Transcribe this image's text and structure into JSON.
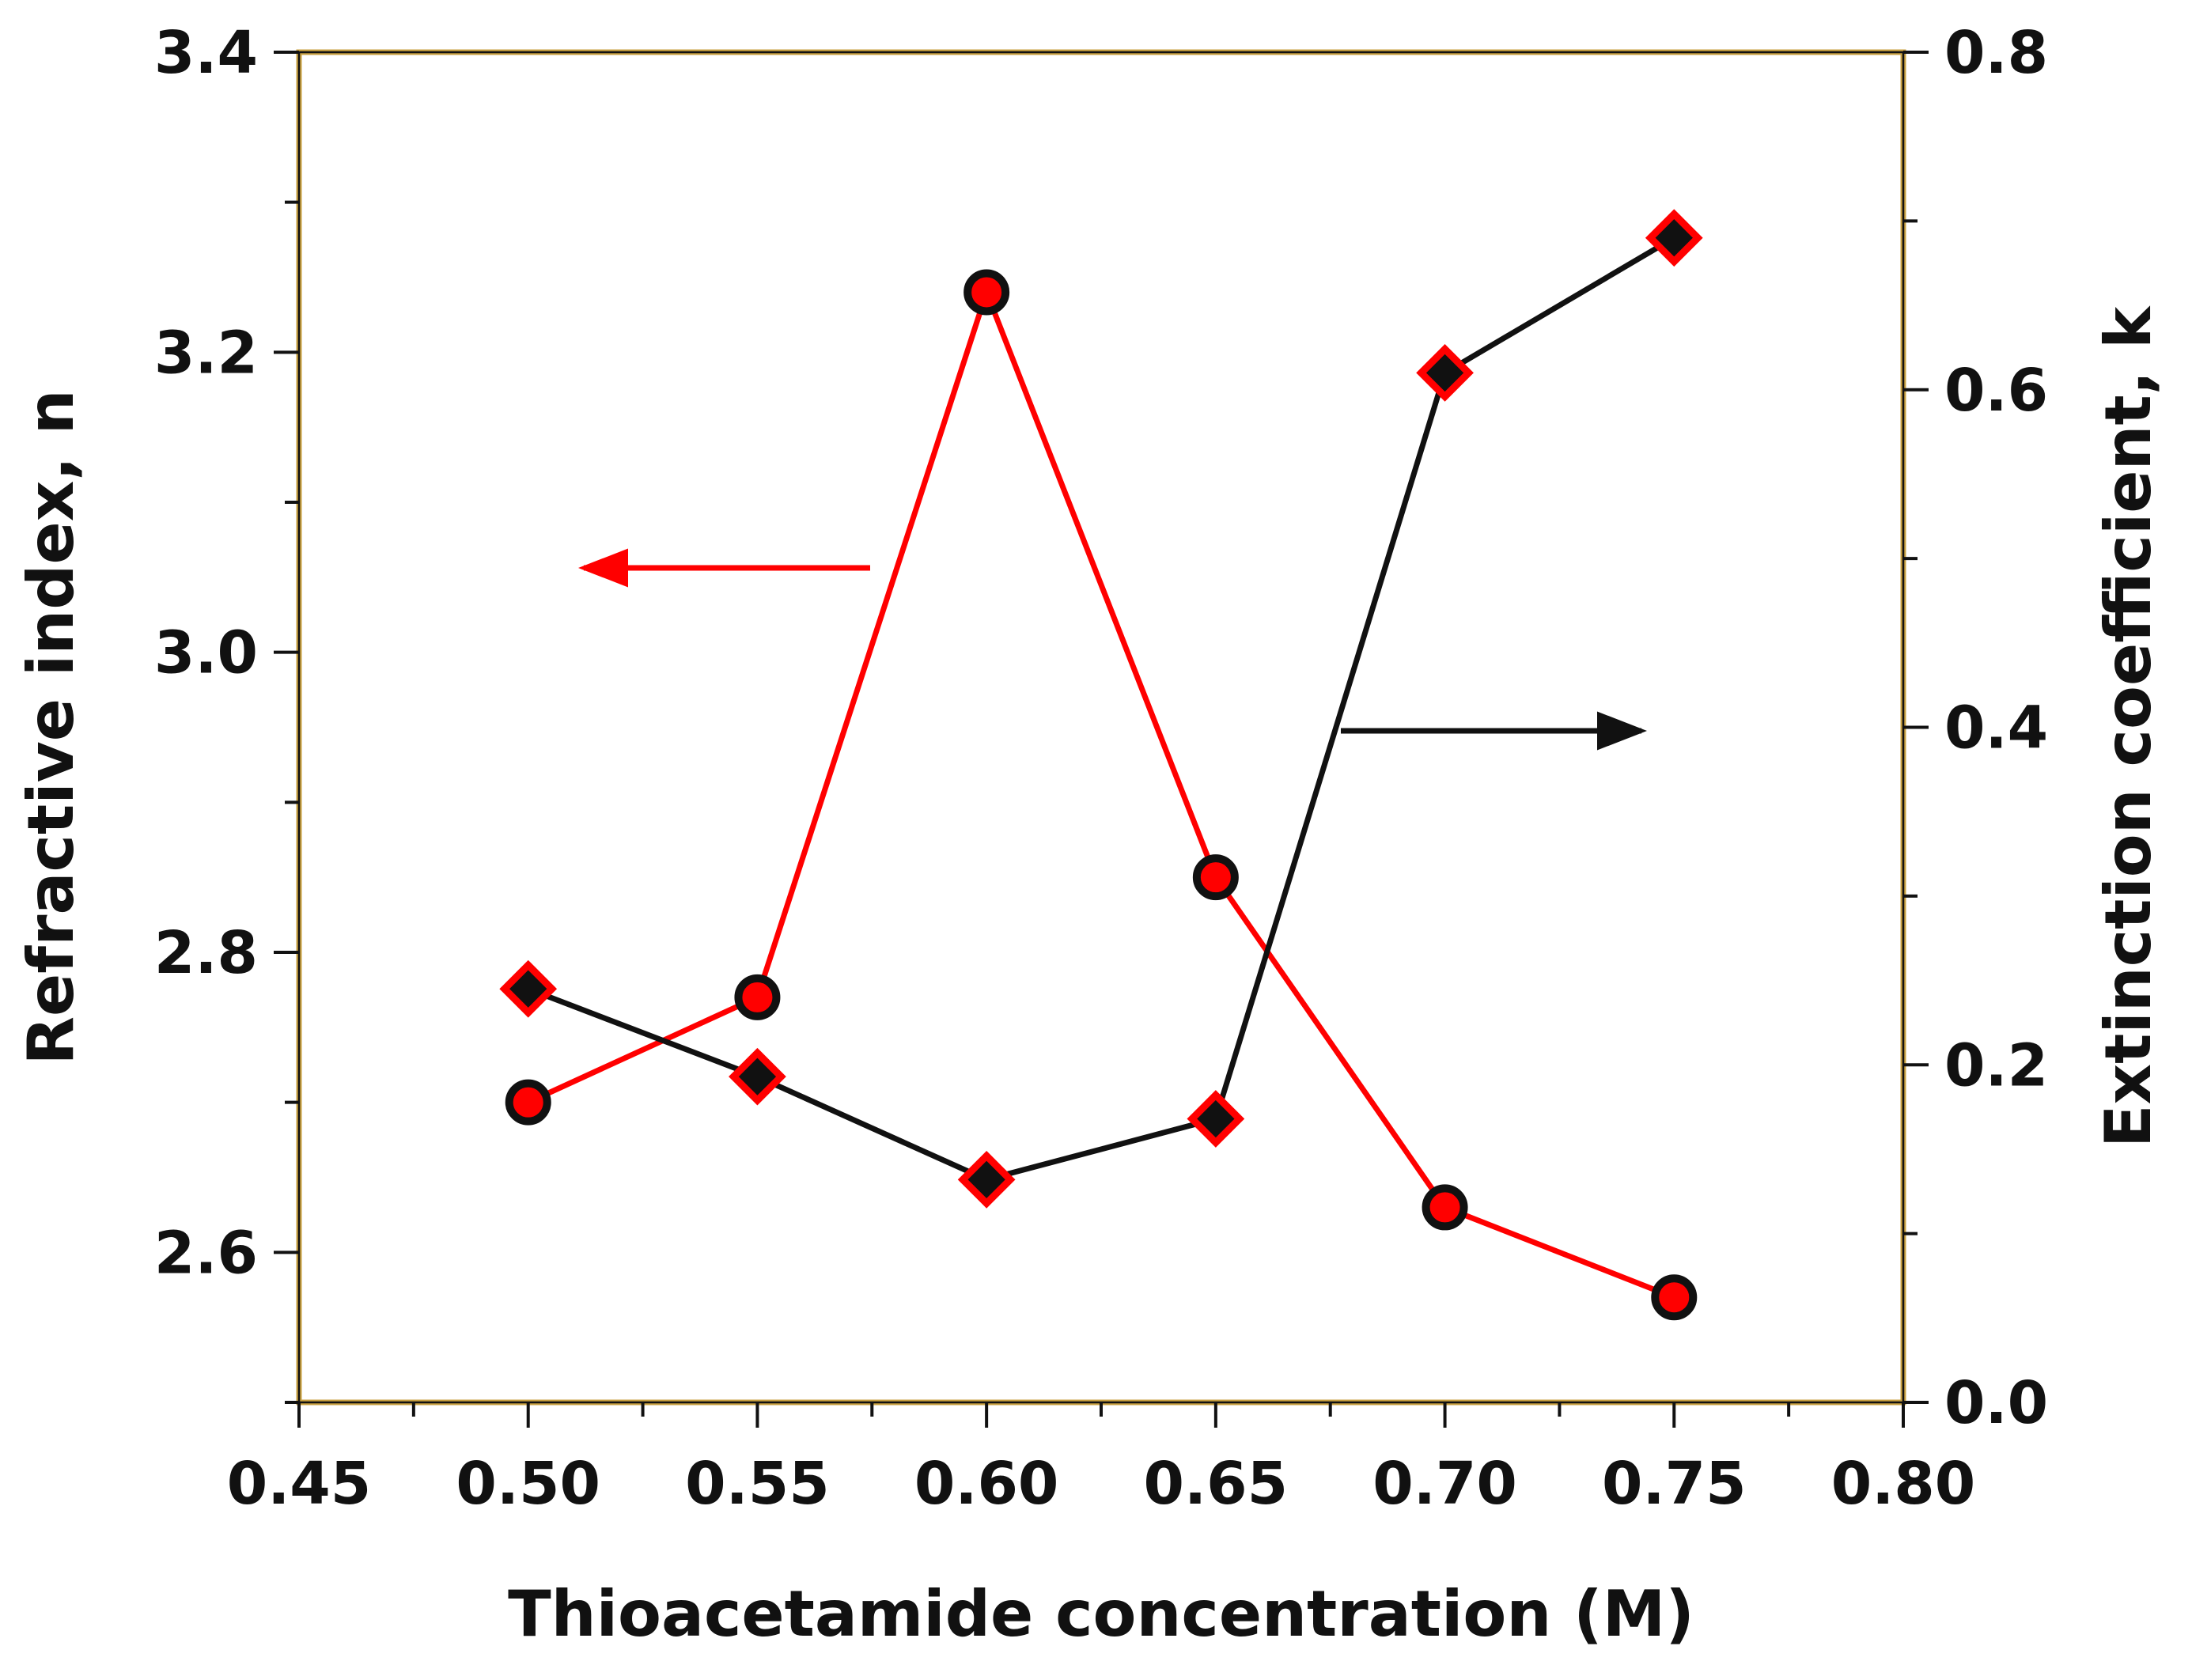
{
  "chart_data": {
    "type": "line",
    "title": "",
    "xlabel": "Thioacetamide concentration (M)",
    "ylabel_left": "Refractive index, n",
    "ylabel_right": "Extinction coefficient, k",
    "xlim": [
      0.45,
      0.8
    ],
    "ylim_left": [
      2.5,
      3.4
    ],
    "ylim_right": [
      0.0,
      0.8
    ],
    "x_ticks": [
      "0.45",
      "0.50",
      "0.55",
      "0.60",
      "0.65",
      "0.70",
      "0.75",
      "0.80"
    ],
    "y_left_ticks": [
      "2.6",
      "2.8",
      "3.0",
      "3.2",
      "3.4"
    ],
    "y_right_ticks": [
      "0.0",
      "0.2",
      "0.4",
      "0.6",
      "0.8"
    ],
    "grid": false,
    "legend": "none",
    "series": [
      {
        "name": "Refractive index, n",
        "axis": "left",
        "marker": "circle",
        "line_color": "#ff0000",
        "marker_fill": "#ff0000",
        "marker_edge": "#111111",
        "x": [
          0.5,
          0.55,
          0.6,
          0.65,
          0.7,
          0.75
        ],
        "values": [
          2.7,
          2.77,
          3.24,
          2.85,
          2.63,
          2.57
        ]
      },
      {
        "name": "Extinction coefficient, k",
        "axis": "right",
        "marker": "diamond",
        "line_color": "#111111",
        "marker_fill": "#111111",
        "marker_edge": "#ff0000",
        "x": [
          0.5,
          0.55,
          0.6,
          0.65,
          0.7,
          0.75
        ],
        "values": [
          0.245,
          0.193,
          0.132,
          0.168,
          0.61,
          0.69
        ]
      }
    ],
    "annotations": [
      {
        "type": "arrow",
        "direction": "left",
        "target_axis": "left",
        "color": "#ff0000"
      },
      {
        "type": "arrow",
        "direction": "right",
        "target_axis": "right",
        "color": "#111111"
      }
    ]
  }
}
